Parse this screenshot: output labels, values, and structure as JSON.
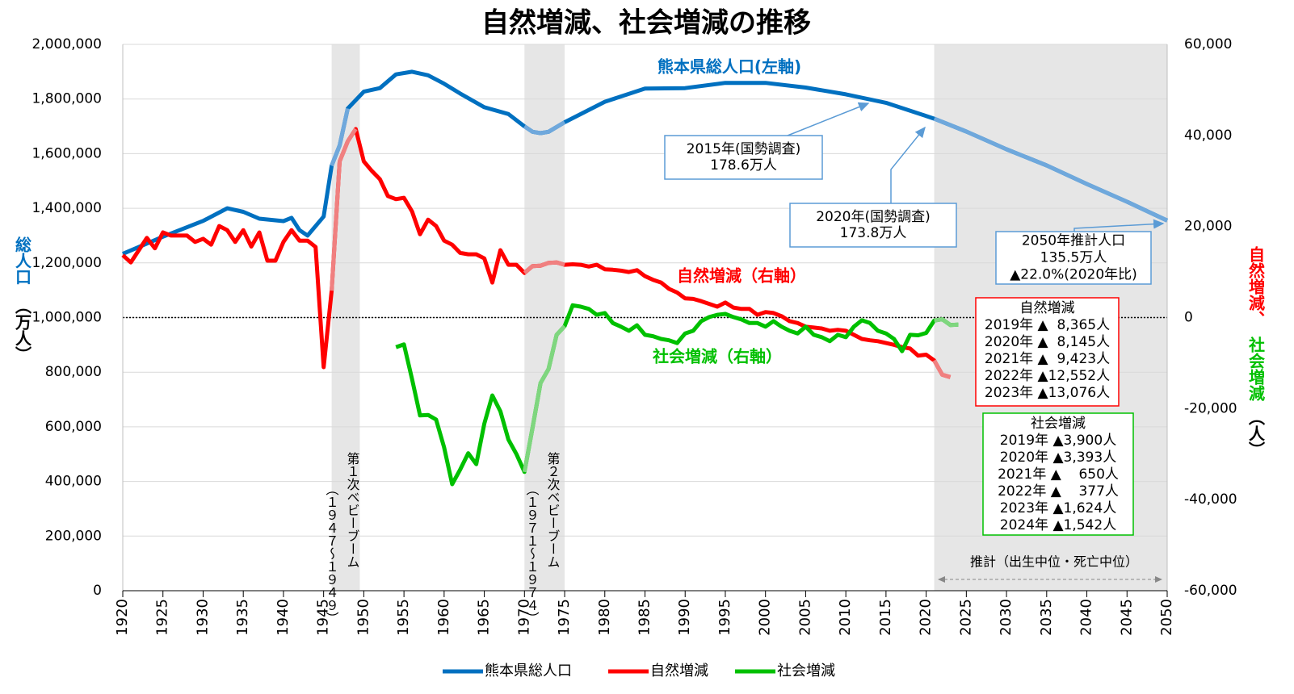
{
  "chart_data": {
    "type": "line",
    "title": "自然増減、社会増減の推移",
    "y_label_parts": [
      {
        "text": "総人口",
        "color": "#0070c0"
      },
      {
        "text": "（万人）",
        "color": "#000000"
      }
    ],
    "y2_label_parts": [
      {
        "text": "自然増減、",
        "color": "#ff0000"
      },
      {
        "text": "社会増減",
        "color": "#00c000"
      },
      {
        "text": "（人）",
        "color": "#000000"
      }
    ],
    "xlim": [
      1920,
      2050
    ],
    "xticks": [
      1920,
      1925,
      1930,
      1935,
      1940,
      1945,
      1950,
      1955,
      1960,
      1965,
      1970,
      1975,
      1980,
      1985,
      1990,
      1995,
      2000,
      2005,
      2010,
      2015,
      2020,
      2025,
      2030,
      2035,
      2040,
      2045,
      2050
    ],
    "ylim": [
      0,
      2000000
    ],
    "yticks": [
      {
        "value": 0,
        "label": "0"
      },
      {
        "value": 200000,
        "label": "200,000"
      },
      {
        "value": 400000,
        "label": "400,000"
      },
      {
        "value": 600000,
        "label": "600,000"
      },
      {
        "value": 800000,
        "label": "800,000"
      },
      {
        "value": 1000000,
        "label": "1,000,000"
      },
      {
        "value": 1200000,
        "label": "1,200,000"
      },
      {
        "value": 1400000,
        "label": "1,400,000"
      },
      {
        "value": 1600000,
        "label": "1,600,000"
      },
      {
        "value": 1800000,
        "label": "1,800,000"
      },
      {
        "value": 2000000,
        "label": "2,000,000"
      }
    ],
    "y2lim": [
      -60000,
      60000
    ],
    "y2ticks": [
      {
        "value": -60000,
        "label": "-60,000"
      },
      {
        "value": -40000,
        "label": "-40,000"
      },
      {
        "value": -20000,
        "label": "-20,000"
      },
      0,
      {
        "value": 20000,
        "label": "20,000"
      },
      {
        "value": 40000,
        "label": "40,000"
      },
      {
        "value": 60000,
        "label": "60,000"
      }
    ],
    "grid": true,
    "reference_line": {
      "axis": "y2",
      "value": 0
    },
    "shaded_ranges": [
      [
        1946,
        1949.5
      ],
      [
        1970,
        1975
      ],
      [
        2021,
        2050
      ]
    ],
    "x": [
      1920,
      1921,
      1922,
      1923,
      1924,
      1925,
      1926,
      1927,
      1928,
      1929,
      1930,
      1931,
      1932,
      1933,
      1934,
      1935,
      1936,
      1937,
      1938,
      1939,
      1940,
      1941,
      1942,
      1943,
      1944,
      1945,
      1946,
      1947,
      1948,
      1949,
      1950,
      1951,
      1952,
      1953,
      1954,
      1955,
      1956,
      1957,
      1958,
      1959,
      1960,
      1961,
      1962,
      1963,
      1964,
      1965,
      1966,
      1967,
      1968,
      1969,
      1970,
      1971,
      1972,
      1973,
      1974,
      1975,
      1976,
      1977,
      1978,
      1979,
      1980,
      1981,
      1982,
      1983,
      1984,
      1985,
      1986,
      1987,
      1988,
      1989,
      1990,
      1991,
      1992,
      1993,
      1994,
      1995,
      1996,
      1997,
      1998,
      1999,
      2000,
      2001,
      2002,
      2003,
      2004,
      2005,
      2006,
      2007,
      2008,
      2009,
      2010,
      2011,
      2012,
      2013,
      2014,
      2015,
      2016,
      2017,
      2018,
      2019,
      2020,
      2021,
      2022,
      2023,
      2024
    ],
    "series": [
      {
        "name": "熊本県総人口",
        "color": "#0070c0",
        "light_color": "#6fa8dc",
        "axis": "y",
        "x": [
          1920,
          1925,
          1930,
          1933,
          1935,
          1937,
          1940,
          1941,
          1942,
          1943,
          1945,
          1946,
          1947,
          1948,
          1950,
          1952,
          1954,
          1956,
          1958,
          1960,
          1962,
          1965,
          1968,
          1970,
          1971,
          1972,
          1973,
          1975,
          1980,
          1985,
          1990,
          1995,
          2000,
          2005,
          2010,
          2015,
          2020,
          2021,
          2025,
          2030,
          2035,
          2040,
          2045,
          2050
        ],
        "values": [
          1233000,
          1296000,
          1354000,
          1400000,
          1387000,
          1362000,
          1353000,
          1365000,
          1320000,
          1300000,
          1370000,
          1556000,
          1630000,
          1765000,
          1827000,
          1840000,
          1890000,
          1900000,
          1887000,
          1856000,
          1820000,
          1770000,
          1745000,
          1700000,
          1680000,
          1675000,
          1680000,
          1715000,
          1790000,
          1838000,
          1840000,
          1859000,
          1859000,
          1842000,
          1817000,
          1786000,
          1738000,
          1728000,
          1681000,
          1616000,
          1557000,
          1489000,
          1424000,
          1355000
        ]
      },
      {
        "name": "自然増減",
        "color": "#ff0000",
        "light_color": "#f08080",
        "axis": "y2",
        "values": [
          13700,
          12100,
          14800,
          17500,
          15200,
          18700,
          18000,
          18000,
          18000,
          16600,
          17300,
          16000,
          20100,
          19200,
          16600,
          19200,
          15600,
          18700,
          12500,
          12500,
          16600,
          19200,
          16900,
          16900,
          15500,
          -10900,
          5900,
          34300,
          38700,
          41400,
          34300,
          32200,
          30400,
          26700,
          26000,
          26300,
          23300,
          18300,
          21500,
          20100,
          16900,
          16000,
          14200,
          13900,
          13900,
          13000,
          7700,
          14800,
          11600,
          11600,
          9800,
          11300,
          11400,
          12000,
          12100,
          11600,
          11700,
          11600,
          11200,
          11600,
          10600,
          10500,
          10300,
          10000,
          10400,
          9100,
          8300,
          7700,
          6300,
          5500,
          4200,
          4100,
          3600,
          3000,
          2400,
          3300,
          2200,
          1900,
          1900,
          600,
          1200,
          1000,
          300,
          -800,
          -1200,
          -2000,
          -2200,
          -2400,
          -2900,
          -2700,
          -2900,
          -3800,
          -4700,
          -5000,
          -5200,
          -5600,
          -6000,
          -6500,
          -6800,
          -8365,
          -8145,
          -9423,
          -12552,
          -13076,
          null
        ]
      },
      {
        "name": "社会増減",
        "color": "#00c000",
        "light_color": "#7fd67f",
        "axis": "y2",
        "values": [
          null,
          null,
          null,
          null,
          null,
          null,
          null,
          null,
          null,
          null,
          null,
          null,
          null,
          null,
          null,
          null,
          null,
          null,
          null,
          null,
          null,
          null,
          null,
          null,
          null,
          null,
          null,
          null,
          null,
          null,
          null,
          null,
          null,
          null,
          -6500,
          -5900,
          -13500,
          -21500,
          -21400,
          -22400,
          -28500,
          -36600,
          -33400,
          -29800,
          -32200,
          -23300,
          -17100,
          -20600,
          -26800,
          -30000,
          -33900,
          -24200,
          -14400,
          -11300,
          -3800,
          -1900,
          2700,
          2400,
          1900,
          600,
          1000,
          -1200,
          -2000,
          -2900,
          -1700,
          -3800,
          -4100,
          -4700,
          -5000,
          -5600,
          -3500,
          -2900,
          -800,
          100,
          600,
          800,
          100,
          -400,
          -1200,
          -1200,
          -2000,
          -800,
          -2000,
          -2900,
          -3500,
          -2000,
          -3800,
          -4300,
          -5200,
          -3800,
          -4300,
          -2000,
          -600,
          -1200,
          -2900,
          -3500,
          -4700,
          -7400,
          -3800,
          -3900,
          -3393,
          -650,
          -377,
          -1624,
          -1542
        ]
      }
    ],
    "series_labels": [
      "熊本県総人口(左軸)",
      "自然増減（右軸）",
      "社会増減（右軸）"
    ],
    "boom_labels": [
      [
        "第１次ベビーブーム",
        "（１９４７～１９４９）"
      ],
      [
        "第２次ベビーブーム",
        "（１９７１～１９７４）"
      ]
    ],
    "projection_label": "推計（出生中位・死亡中位）",
    "callouts": [
      [
        "2015年(国勢調査)",
        "178.6万人"
      ],
      [
        "2020年(国勢調査)",
        "173.8万人"
      ],
      [
        "2050年推計人口",
        "135.5万人",
        "▲22.0%(2020年比)"
      ]
    ],
    "natural_box": {
      "title": "自然増減",
      "rows": [
        "2019年 ▲  8,365人",
        "2020年 ▲  8,145人",
        "2021年 ▲  9,423人",
        "2022年 ▲12,552人",
        "2023年 ▲13,076人"
      ]
    },
    "social_box": {
      "title": "社会増減",
      "rows": [
        "2019年 ▲3,900人",
        "2020年 ▲3,393人",
        "2021年 ▲    650人",
        "2022年 ▲    377人",
        "2023年 ▲1,624人",
        "2024年 ▲1,542人"
      ]
    }
  }
}
